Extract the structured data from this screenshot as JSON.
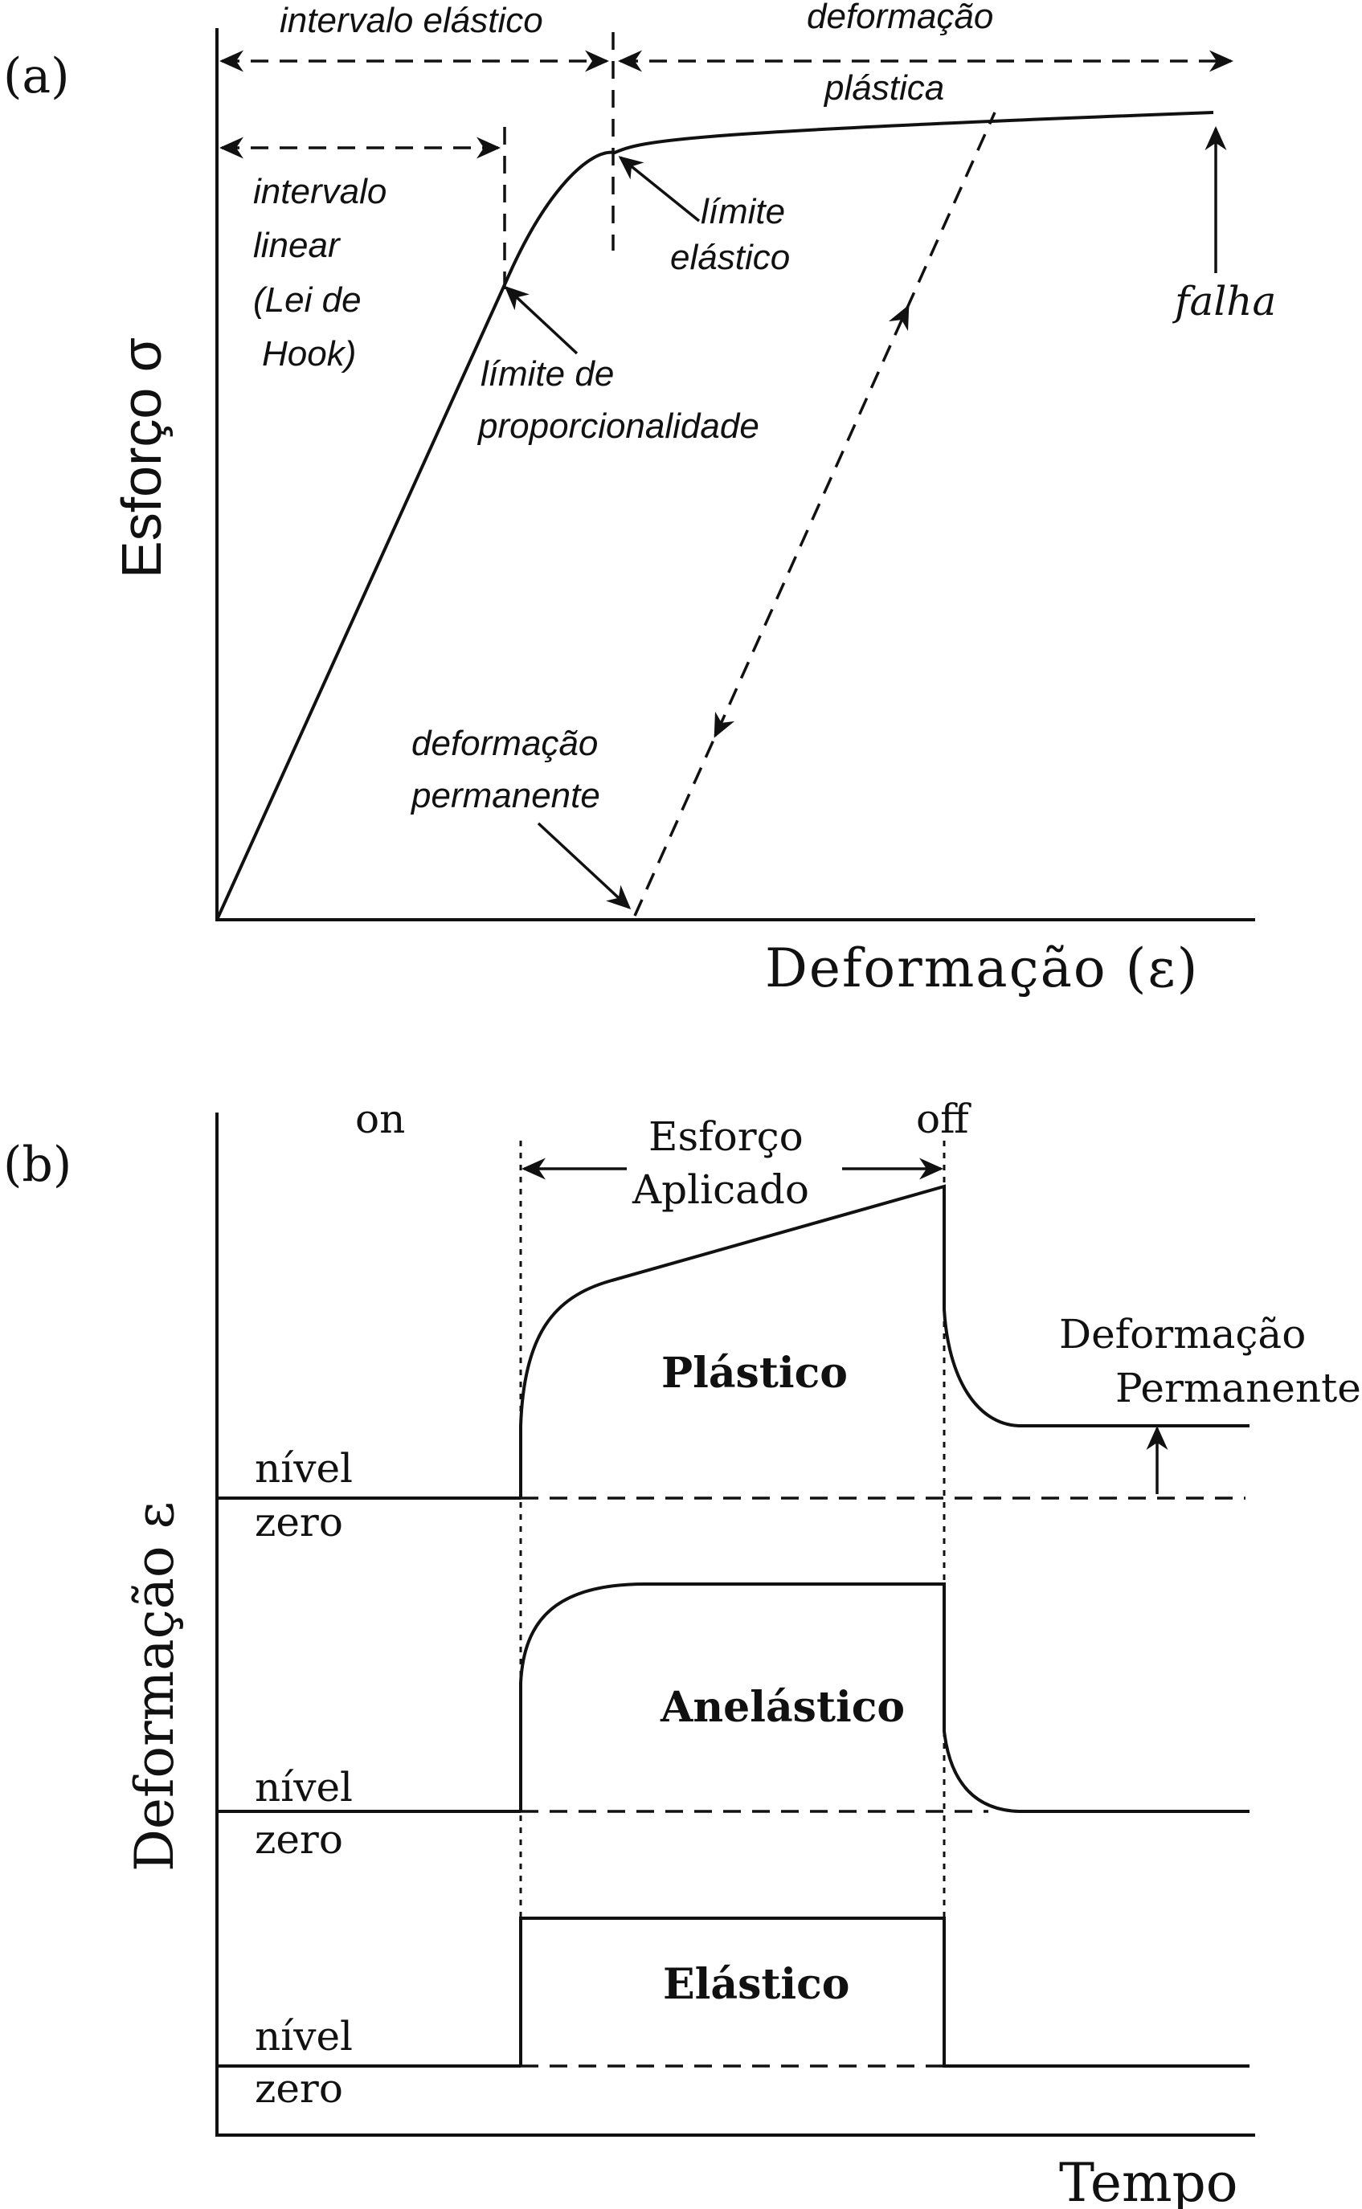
{
  "panel_a": {
    "label": "(a)",
    "y_axis_label": "Esforço σ",
    "x_axis_label": "Deformação (ε)",
    "annotations": {
      "elastic_range": "intervalo elástico",
      "plastic_deformation_1": "deformação",
      "plastic_deformation_2": "plástica",
      "linear_range_1": "intervalo",
      "linear_range_2": "linear",
      "linear_range_3": "(Lei de",
      "linear_range_4": "Hook)",
      "elastic_limit_1": "límite",
      "elastic_limit_2": "elástico",
      "proportional_limit_1": "límite de",
      "proportional_limit_2": "proporcionalidade",
      "failure": "falha",
      "permanent_deformation_1": "deformação",
      "permanent_deformation_2": "permanente"
    }
  },
  "panel_b": {
    "label": "(b)",
    "y_axis_label": "Deformação ε",
    "x_axis_label": "Tempo",
    "on_label": "on",
    "off_label": "off",
    "applied_stress_1": "Esforço",
    "applied_stress_2": "Aplicado",
    "permanent_deformation_1": "Deformação",
    "permanent_deformation_2": "Permanente",
    "curves": [
      {
        "name": "Plástico",
        "zero_1": "nível",
        "zero_2": "zero"
      },
      {
        "name": "Anelástico",
        "zero_1": "nível",
        "zero_2": "zero"
      },
      {
        "name": "Elástico",
        "zero_1": "nível",
        "zero_2": "zero"
      }
    ]
  }
}
